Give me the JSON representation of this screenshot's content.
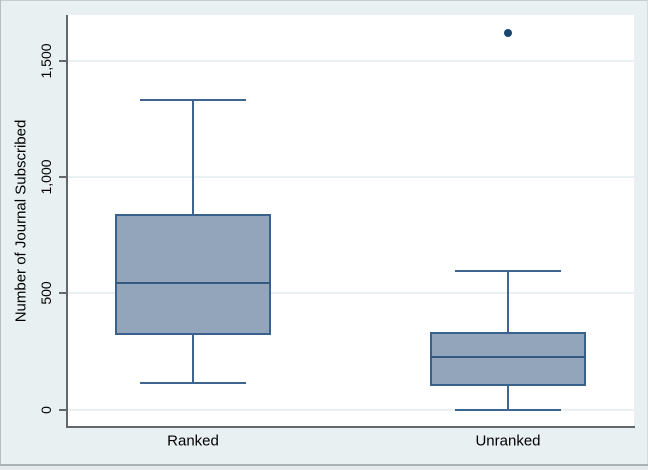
{
  "chart_data": {
    "type": "box",
    "title": "",
    "ylabel": "Number of Journal Subscribed",
    "xlabel": "",
    "categories": [
      "Ranked",
      "Unranked"
    ],
    "yticks": [
      {
        "value": 0,
        "label": "0"
      },
      {
        "value": 500,
        "label": "500"
      },
      {
        "value": 1000,
        "label": "1,000"
      },
      {
        "value": 1500,
        "label": "1,500"
      }
    ],
    "ylim": [
      0,
      1690
    ],
    "grid": true,
    "legend": "none",
    "series": [
      {
        "category": "Ranked",
        "whisker_low": 115,
        "q1": 320,
        "median": 545,
        "q3": 840,
        "whisker_high": 1330,
        "outliers": []
      },
      {
        "category": "Unranked",
        "whisker_low": 0,
        "q1": 100,
        "median": 225,
        "q3": 335,
        "whisker_high": 595,
        "outliers": [
          1620
        ]
      }
    ],
    "colors": {
      "graph_background": "#e9f0f2",
      "plot_background": "#ffffff",
      "gridline": "#e8f0f1",
      "axis_line": "#636769",
      "box_fill": "#93a5bb",
      "box_border": "#3a618c",
      "median_line": "#345a82",
      "whisker_line": "#3f648e",
      "outlier_dot": "#1a476f",
      "text": "#000000"
    }
  }
}
